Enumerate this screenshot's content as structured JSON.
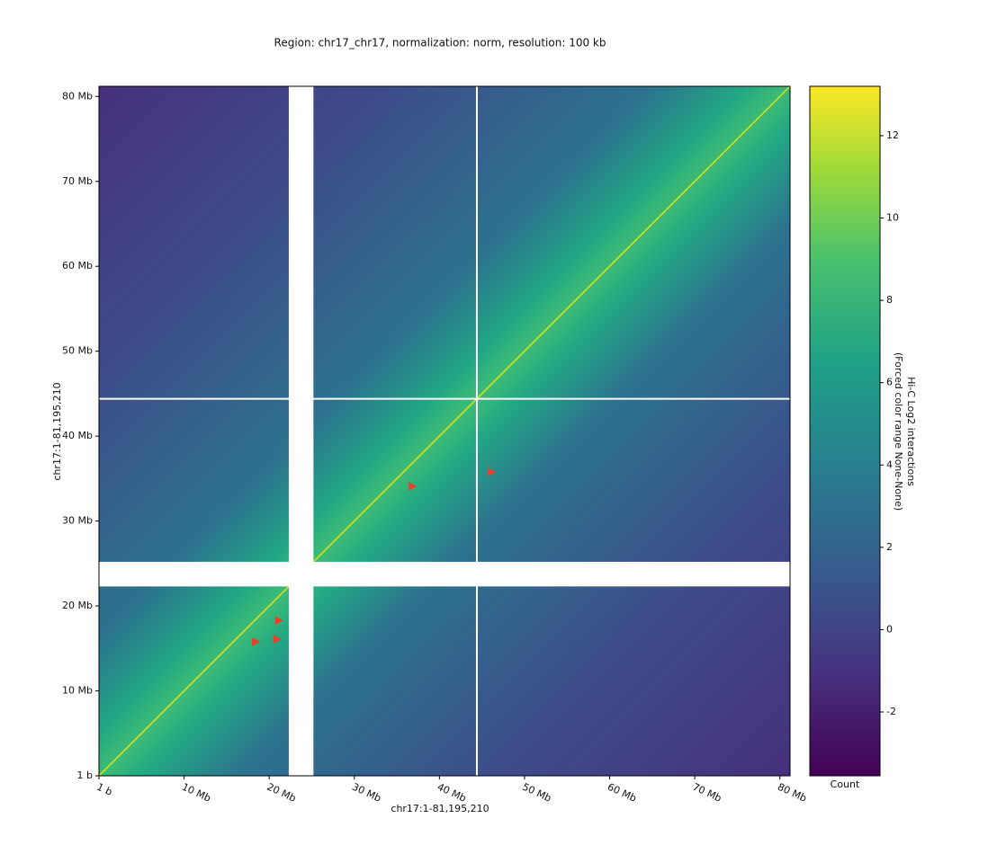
{
  "chart_data": {
    "type": "heatmap",
    "title": "Region: chr17_chr17, normalization: norm, resolution: 100 kb",
    "x_label": "chr17:1-81,195,210",
    "y_label": "chr17:1-81,195,210",
    "xlim": [
      0,
      81.19521
    ],
    "ylim": [
      0,
      81.19521
    ],
    "xticks": [
      {
        "value": 1e-06,
        "label": "1 b"
      },
      {
        "value": 10,
        "label": "10 Mb"
      },
      {
        "value": 20,
        "label": "20 Mb"
      },
      {
        "value": 30,
        "label": "30 Mb"
      },
      {
        "value": 40,
        "label": "40 Mb"
      },
      {
        "value": 50,
        "label": "50 Mb"
      },
      {
        "value": 60,
        "label": "60 Mb"
      },
      {
        "value": 70,
        "label": "70 Mb"
      },
      {
        "value": 80,
        "label": "80 Mb"
      }
    ],
    "yticks": [
      {
        "value": 1e-06,
        "label": "1 b"
      },
      {
        "value": 10,
        "label": "10 Mb"
      },
      {
        "value": 20,
        "label": "20 Mb"
      },
      {
        "value": 30,
        "label": "30 Mb"
      },
      {
        "value": 40,
        "label": "40 Mb"
      },
      {
        "value": 50,
        "label": "50 Mb"
      },
      {
        "value": 60,
        "label": "60 Mb"
      },
      {
        "value": 70,
        "label": "70 Mb"
      },
      {
        "value": 80,
        "label": "80 Mb"
      }
    ],
    "masked_regions": [
      [
        22.3,
        25.2
      ]
    ],
    "masked_lines": [
      44.4
    ],
    "markers": {
      "color": "#e8402a",
      "x": [
        36.8,
        46.1,
        21.1,
        20.9,
        18.4
      ],
      "y": [
        34.1,
        35.8,
        18.3,
        16.1,
        15.8
      ]
    },
    "colorbar": {
      "label": [
        "Hi-C Log2 interactions",
        "(Forced color range None-None)"
      ],
      "xlabel": "Count",
      "lim": [
        -3.55,
        13.2
      ],
      "ticks": [
        -2,
        0,
        2,
        4,
        6,
        8,
        10,
        12
      ]
    }
  }
}
